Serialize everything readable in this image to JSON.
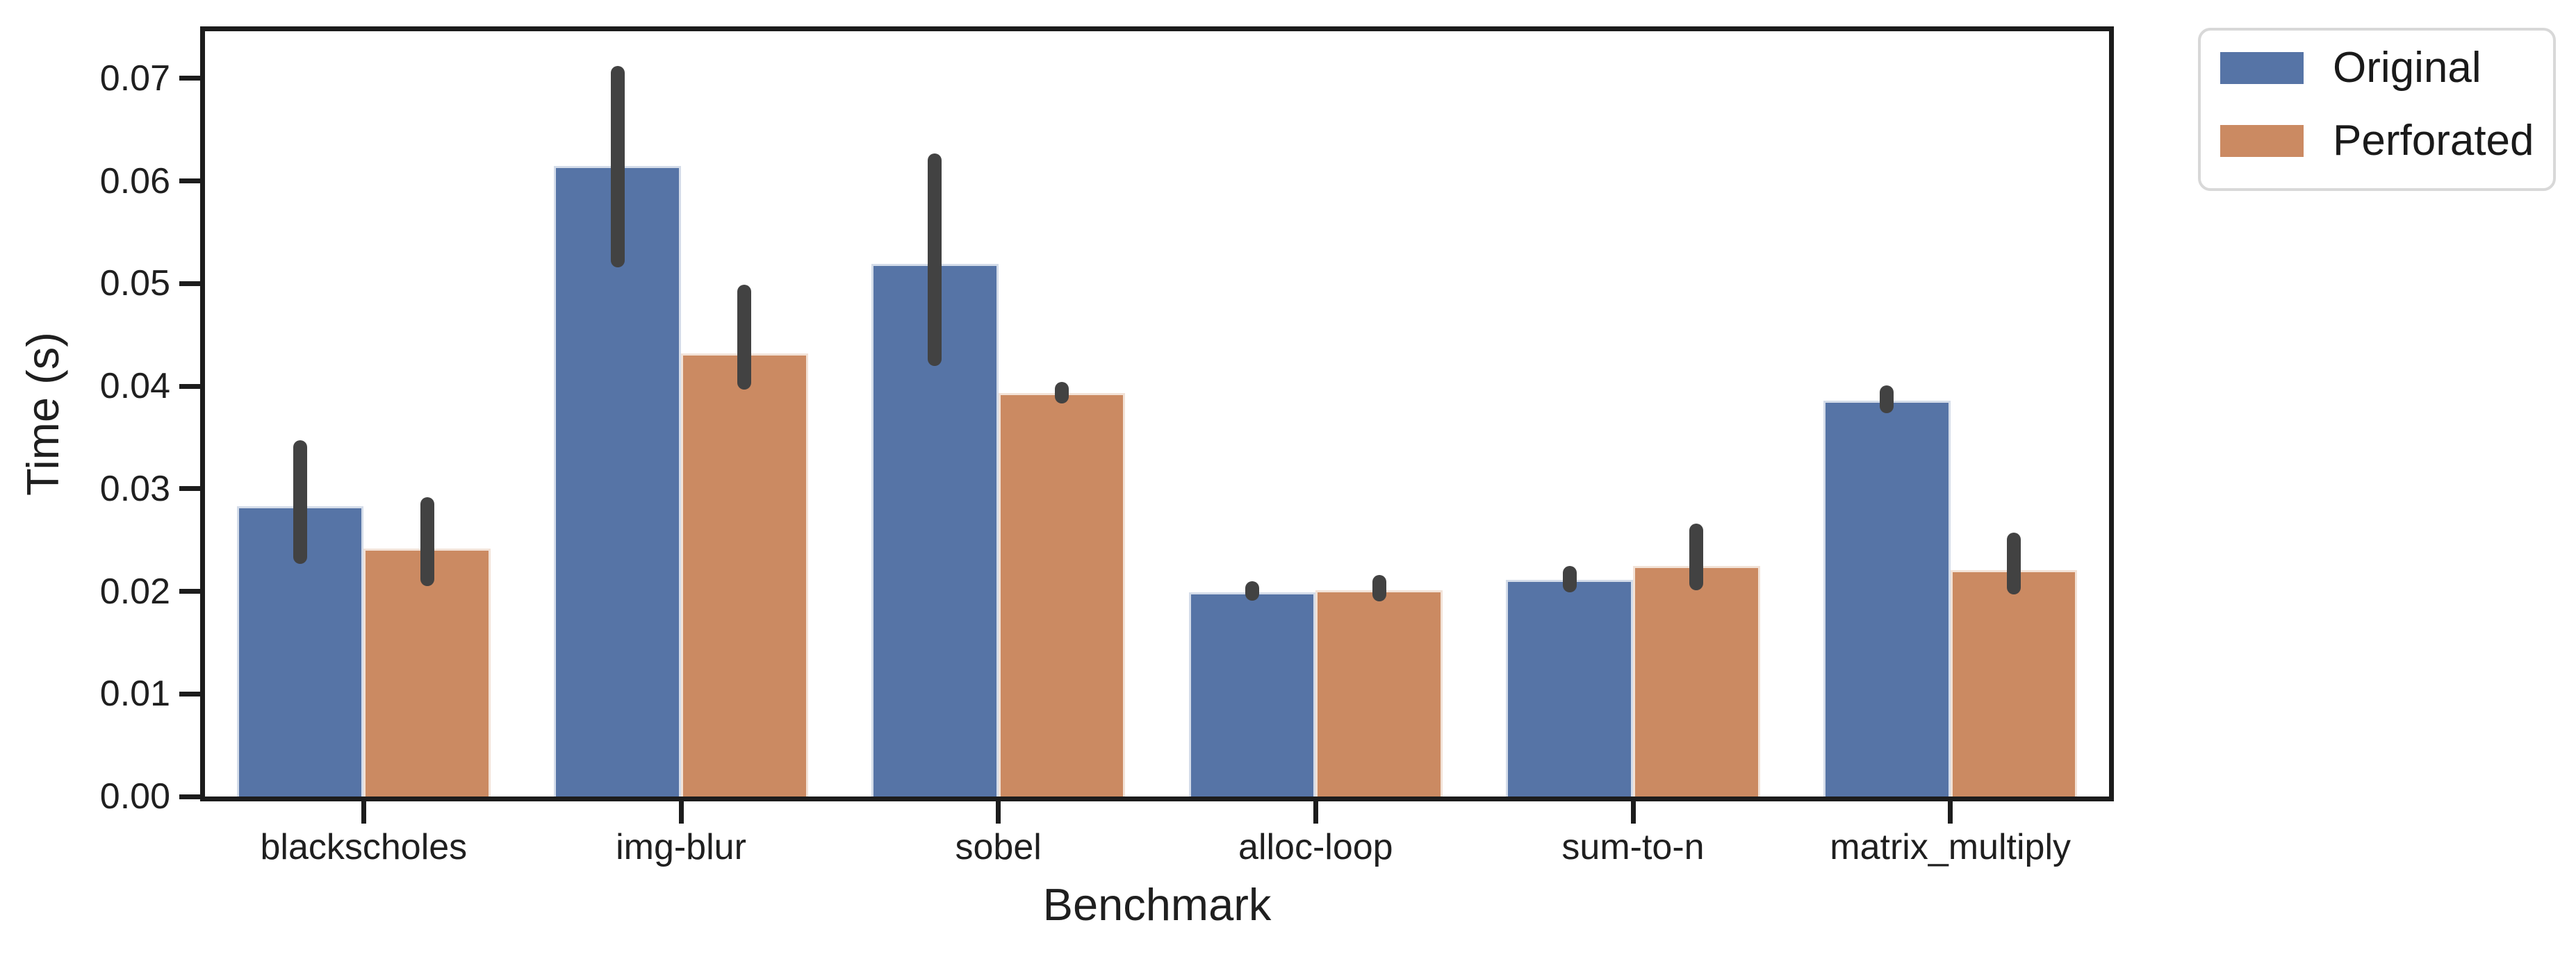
{
  "figure": {
    "background": "#ffffff",
    "text_color": "#1f1f1f",
    "spine_color": "#1c1c1c"
  },
  "chart_data": {
    "type": "bar",
    "title": "",
    "xlabel": "Benchmark",
    "ylabel": "Time (s)",
    "categories": [
      "blackscholes",
      "img-blur",
      "sobel",
      "alloc-loop",
      "sum-to-n",
      "matrix_multiply"
    ],
    "series": [
      {
        "name": "Original",
        "color": "#5674A6",
        "values": [
          0.0283,
          0.0615,
          0.0519,
          0.0199,
          0.0211,
          0.0386
        ],
        "err_low": [
          0.0227,
          0.0516,
          0.042,
          0.0191,
          0.0199,
          0.0374
        ],
        "err_high": [
          0.0347,
          0.0712,
          0.0627,
          0.021,
          0.0225,
          0.0401
        ]
      },
      {
        "name": "Perforated",
        "color": "#CB8A62",
        "values": [
          0.0242,
          0.0432,
          0.0393,
          0.0201,
          0.0225,
          0.0221
        ],
        "err_low": [
          0.0205,
          0.0397,
          0.0383,
          0.019,
          0.0201,
          0.0197
        ],
        "err_high": [
          0.0292,
          0.0499,
          0.0404,
          0.0216,
          0.0266,
          0.0257
        ]
      }
    ],
    "error_bar_color": "#424242",
    "ylim": [
      0,
      0.0746
    ],
    "yticks": [
      0.0,
      0.01,
      0.02,
      0.03,
      0.04,
      0.05,
      0.06,
      0.07
    ],
    "ytick_labels": [
      "0.00",
      "0.01",
      "0.02",
      "0.03",
      "0.04",
      "0.05",
      "0.06",
      "0.07"
    ],
    "grid": false,
    "legend_position": "outside upper right"
  },
  "legend": {
    "items": [
      {
        "label": "Original",
        "color": "#5674A6"
      },
      {
        "label": "Perforated",
        "color": "#CB8A62"
      }
    ]
  }
}
